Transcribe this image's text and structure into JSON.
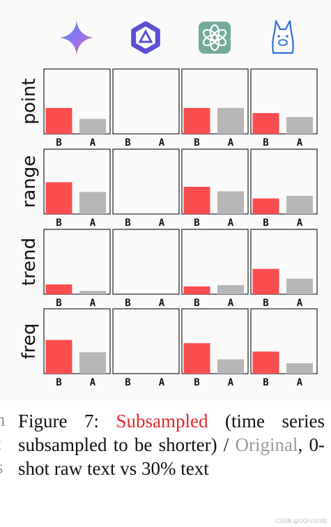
{
  "chart_data": {
    "type": "bar",
    "layout": "small-multiples grid",
    "categories": [
      "B",
      "A"
    ],
    "column_icons": [
      "gemini-logo-icon",
      "qwen-logo-icon",
      "chatgpt-logo-icon",
      "llama-logo-icon"
    ],
    "rows": [
      "point",
      "range",
      "trend",
      "freq"
    ],
    "ylim": [
      0,
      1
    ],
    "bar_colors": {
      "B": "#fb4d4f",
      "A": "#b6b6b6"
    },
    "panels": [
      {
        "row": "point",
        "col": 0,
        "values": [
          0.4,
          0.23
        ]
      },
      {
        "row": "point",
        "col": 1,
        "values": [
          0,
          0
        ]
      },
      {
        "row": "point",
        "col": 2,
        "values": [
          0.4,
          0.4
        ]
      },
      {
        "row": "point",
        "col": 3,
        "values": [
          0.32,
          0.26
        ]
      },
      {
        "row": "range",
        "col": 0,
        "values": [
          0.49,
          0.34
        ]
      },
      {
        "row": "range",
        "col": 1,
        "values": [
          0,
          0
        ]
      },
      {
        "row": "range",
        "col": 2,
        "values": [
          0.42,
          0.35
        ]
      },
      {
        "row": "range",
        "col": 3,
        "values": [
          0.24,
          0.28
        ]
      },
      {
        "row": "trend",
        "col": 0,
        "values": [
          0.15,
          0.05
        ]
      },
      {
        "row": "trend",
        "col": 1,
        "values": [
          0,
          0
        ]
      },
      {
        "row": "trend",
        "col": 2,
        "values": [
          0.12,
          0.14
        ]
      },
      {
        "row": "trend",
        "col": 3,
        "values": [
          0.39,
          0.24
        ]
      },
      {
        "row": "freq",
        "col": 0,
        "values": [
          0.52,
          0.33
        ]
      },
      {
        "row": "freq",
        "col": 1,
        "values": [
          0,
          0
        ]
      },
      {
        "row": "freq",
        "col": 2,
        "values": [
          0.47,
          0.22
        ]
      },
      {
        "row": "freq",
        "col": 3,
        "values": [
          0.34,
          0.16
        ]
      }
    ]
  },
  "caption": {
    "prefix": "Figure 7: ",
    "subsampled": "Subsampled",
    "middle": " (time series subsampled to be shorter) / ",
    "original": "Original",
    "suffix": ", 0-shot raw text vs 30% text"
  },
  "left_edge_glyphs": [
    "n",
    "t",
    "s"
  ],
  "watermark": "CSDN @UQI-LIUWJ"
}
